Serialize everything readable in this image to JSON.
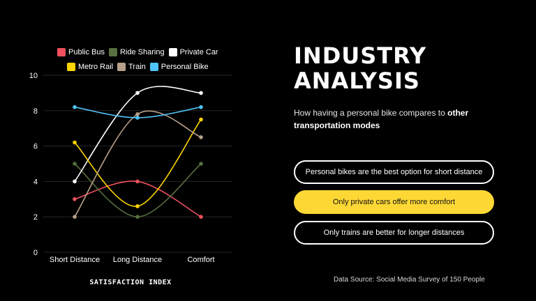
{
  "chart_data": {
    "type": "line",
    "categories": [
      "Short Distance",
      "Long Distance",
      "Comfort"
    ],
    "series": [
      {
        "name": "Public Bus",
        "color": "#ef5060",
        "values": [
          3,
          4,
          2
        ]
      },
      {
        "name": "Ride Sharing",
        "color": "#56703f",
        "values": [
          5,
          2,
          5
        ]
      },
      {
        "name": "Private Car",
        "color": "#ffffff",
        "values": [
          4,
          9,
          9
        ]
      },
      {
        "name": "Metro Rail",
        "color": "#ffd600",
        "values": [
          6.2,
          2.6,
          7.5
        ]
      },
      {
        "name": "Train",
        "color": "#b8a08a",
        "values": [
          2,
          7.8,
          6.5
        ]
      },
      {
        "name": "Personal Bike",
        "color": "#4fc3f7",
        "values": [
          8.2,
          7.6,
          8.2
        ]
      }
    ],
    "yticks": [
      0,
      2,
      4,
      6,
      8,
      10
    ],
    "ylim": [
      0,
      10
    ],
    "grid": true,
    "xlabel": "SATISFACTION INDEX",
    "ylabel": "",
    "legend_position": "top"
  },
  "title": "INDUSTRY ANALYSIS",
  "subtitle": {
    "text_plain": "How having a personal bike compares to ",
    "text_bold": "other transportation modes"
  },
  "options": [
    {
      "label": "Personal bikes are the best option for short distance",
      "selected": false
    },
    {
      "label": "Only private cars offer more comfort",
      "selected": true
    },
    {
      "label": "Only trains are better for longer distances",
      "selected": false
    }
  ],
  "source": "Data Source: Social Media Survey of 150 People",
  "colors": {
    "accent": "#fdd835",
    "background": "#000000"
  }
}
